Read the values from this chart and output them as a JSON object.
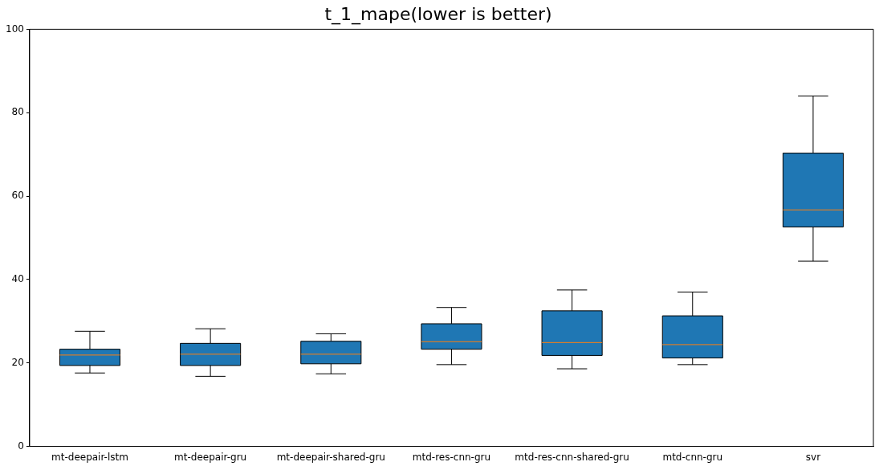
{
  "chart_data": {
    "type": "box",
    "title": "t_1_mape(lower is better)",
    "categories": [
      "mt-deepair-lstm",
      "mt-deepair-gru",
      "mt-deepair-shared-gru",
      "mtd-res-cnn-gru",
      "mtd-res-cnn-shared-gru",
      "mtd-cnn-gru",
      "svr"
    ],
    "series": [
      {
        "color": "#1f77b4",
        "boxes": [
          {
            "low": 17.6,
            "q1": 19.4,
            "median": 21.9,
            "q3": 23.3,
            "high": 27.6
          },
          {
            "low": 16.8,
            "q1": 19.4,
            "median": 22.1,
            "q3": 24.7,
            "high": 28.2
          },
          {
            "low": 17.4,
            "q1": 19.8,
            "median": 22.1,
            "q3": 25.2,
            "high": 27.0
          },
          {
            "low": 19.6,
            "q1": 23.3,
            "median": 25.1,
            "q3": 29.4,
            "high": 33.3
          },
          {
            "low": 18.6,
            "q1": 21.8,
            "median": 24.9,
            "q3": 32.5,
            "high": 37.5
          },
          {
            "low": 19.6,
            "q1": 21.2,
            "median": 24.4,
            "q3": 31.3,
            "high": 37.0
          },
          {
            "low": 44.4,
            "q1": 52.6,
            "median": 56.7,
            "q3": 70.3,
            "high": 84.0
          }
        ]
      }
    ],
    "ylim": [
      0,
      100
    ],
    "yticks": [
      0,
      20,
      40,
      60,
      80,
      100
    ],
    "grid": false,
    "legend": false
  }
}
